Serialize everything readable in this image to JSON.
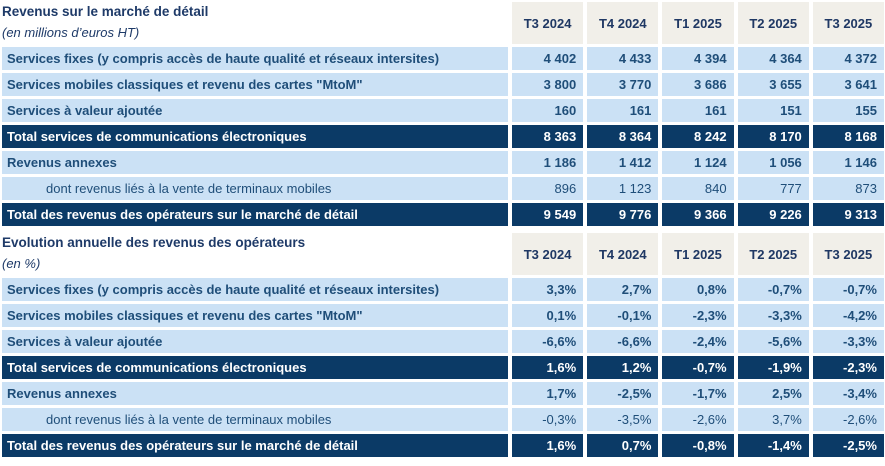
{
  "colors": {
    "navy_row_bg": "#0b3a66",
    "light_row_bg": "#cbe1f5",
    "header_bg": "#f1efe9",
    "label_text": "#1f4e79",
    "title_text": "#1e3a68",
    "dark_row_text": "#ffffff"
  },
  "quarters": [
    "T3 2024",
    "T4 2024",
    "T1 2025",
    "T2 2025",
    "T3 2025"
  ],
  "table1": {
    "title": "Revenus sur le marché de détail",
    "subtitle": "(en millions d’euros HT)",
    "rows": [
      {
        "label": "Services fixes (y compris accès de haute qualité et réseaux intersites)",
        "style": "light",
        "values": [
          "4 402",
          "4 433",
          "4 394",
          "4 364",
          "4 372"
        ]
      },
      {
        "label": "Services mobiles classiques et revenu des cartes \"MtoM\"",
        "style": "light",
        "values": [
          "3 800",
          "3 770",
          "3 686",
          "3 655",
          "3 641"
        ]
      },
      {
        "label": "Services à valeur ajoutée",
        "style": "light",
        "values": [
          "160",
          "161",
          "161",
          "151",
          "155"
        ]
      },
      {
        "label": "Total services de communications électroniques",
        "style": "dark",
        "values": [
          "8 363",
          "8 364",
          "8 242",
          "8 170",
          "8 168"
        ]
      },
      {
        "label": "Revenus annexes",
        "style": "light",
        "values": [
          "1 186",
          "1 412",
          "1 124",
          "1 056",
          "1 146"
        ]
      },
      {
        "label": "dont revenus liés à la vente de terminaux mobiles",
        "style": "sub",
        "values": [
          "896",
          "1 123",
          "840",
          "777",
          "873"
        ]
      },
      {
        "label": "Total des revenus des opérateurs sur le marché de détail",
        "style": "dark",
        "values": [
          "9 549",
          "9 776",
          "9 366",
          "9 226",
          "9 313"
        ]
      }
    ]
  },
  "table2": {
    "title": "Evolution annuelle des revenus des opérateurs",
    "subtitle": "(en %)",
    "rows": [
      {
        "label": "Services fixes (y compris accès de haute qualité et réseaux intersites)",
        "style": "light",
        "values": [
          "3,3%",
          "2,7%",
          "0,8%",
          "-0,7%",
          "-0,7%"
        ]
      },
      {
        "label": "Services mobiles classiques et revenu des cartes \"MtoM\"",
        "style": "light",
        "values": [
          "0,1%",
          "-0,1%",
          "-2,3%",
          "-3,3%",
          "-4,2%"
        ]
      },
      {
        "label": "Services à valeur ajoutée",
        "style": "light",
        "values": [
          "-6,6%",
          "-6,6%",
          "-2,4%",
          "-5,6%",
          "-3,3%"
        ]
      },
      {
        "label": "Total services de communications électroniques",
        "style": "dark",
        "values": [
          "1,6%",
          "1,2%",
          "-0,7%",
          "-1,9%",
          "-2,3%"
        ]
      },
      {
        "label": "Revenus annexes",
        "style": "light",
        "values": [
          "1,7%",
          "-2,5%",
          "-1,7%",
          "2,5%",
          "-3,4%"
        ]
      },
      {
        "label": "dont revenus liés à la vente de terminaux mobiles",
        "style": "sub",
        "values": [
          "-0,3%",
          "-3,5%",
          "-2,6%",
          "3,7%",
          "-2,6%"
        ]
      },
      {
        "label": "Total des revenus des opérateurs sur le marché de détail",
        "style": "dark",
        "values": [
          "1,6%",
          "0,7%",
          "-0,8%",
          "-1,4%",
          "-2,5%"
        ]
      }
    ]
  }
}
